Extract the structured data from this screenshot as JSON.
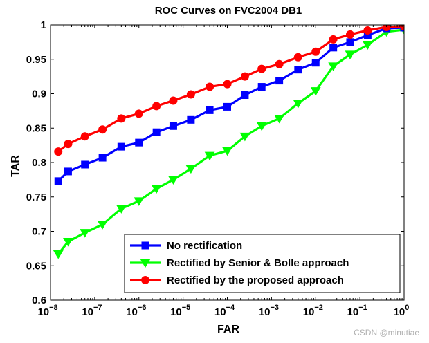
{
  "chart_data": {
    "type": "line",
    "title": "ROC Curves on FVC2004 DB1",
    "xlabel": "FAR",
    "ylabel": "TAR",
    "xscale": "log",
    "xlim": [
      1e-08,
      1
    ],
    "ylim": [
      0.6,
      1
    ],
    "xticks": [
      {
        "base": "10",
        "exp": "−8",
        "value": 1e-08
      },
      {
        "base": "10",
        "exp": "−7",
        "value": 1e-07
      },
      {
        "base": "10",
        "exp": "−6",
        "value": 1e-06
      },
      {
        "base": "10",
        "exp": "−5",
        "value": 1e-05
      },
      {
        "base": "10",
        "exp": "−4",
        "value": 0.0001
      },
      {
        "base": "10",
        "exp": "−3",
        "value": 0.001
      },
      {
        "base": "10",
        "exp": "−2",
        "value": 0.01
      },
      {
        "base": "10",
        "exp": "−1",
        "value": 0.1
      },
      {
        "base": "10",
        "exp": "0",
        "value": 1
      }
    ],
    "yticks": [
      "0.6",
      "0.65",
      "0.7",
      "0.75",
      "0.8",
      "0.85",
      "0.9",
      "0.95",
      "1"
    ],
    "grid": false,
    "legend_position": "bottom-right",
    "x": [
      1.5e-08,
      2.5e-08,
      6e-08,
      1.5e-07,
      4e-07,
      1e-06,
      2.5e-06,
      6e-06,
      1.5e-05,
      4e-05,
      0.0001,
      0.00025,
      0.0006,
      0.0015,
      0.004,
      0.01,
      0.025,
      0.06,
      0.15,
      0.4,
      1
    ],
    "series": [
      {
        "name": "No rectification",
        "color": "#0000ff",
        "marker": "square",
        "values": [
          0.773,
          0.787,
          0.797,
          0.807,
          0.823,
          0.829,
          0.844,
          0.853,
          0.862,
          0.876,
          0.881,
          0.898,
          0.91,
          0.919,
          0.935,
          0.945,
          0.967,
          0.975,
          0.985,
          0.995,
          0.996
        ]
      },
      {
        "name": "Rectified by Senior & Bolle approach",
        "color": "#00ff00",
        "marker": "triangle-down",
        "values": [
          0.667,
          0.685,
          0.698,
          0.71,
          0.733,
          0.744,
          0.762,
          0.775,
          0.791,
          0.81,
          0.817,
          0.838,
          0.853,
          0.864,
          0.886,
          0.904,
          0.94,
          0.957,
          0.971,
          0.99,
          0.993
        ]
      },
      {
        "name": "Rectified by the proposed approach",
        "color": "#ff0000",
        "marker": "circle",
        "values": [
          0.816,
          0.827,
          0.838,
          0.848,
          0.864,
          0.871,
          0.882,
          0.89,
          0.899,
          0.91,
          0.914,
          0.925,
          0.936,
          0.943,
          0.953,
          0.961,
          0.979,
          0.986,
          0.992,
          0.997,
          0.998
        ]
      }
    ]
  },
  "watermark": "CSDN @minutiae"
}
